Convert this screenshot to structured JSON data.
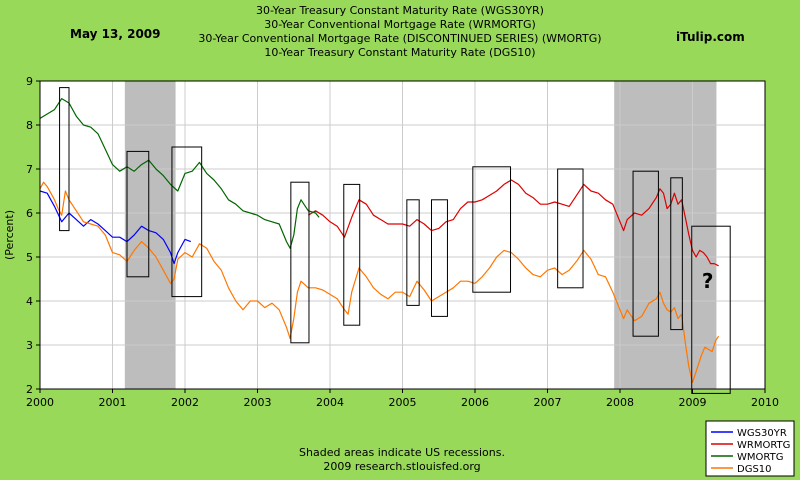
{
  "header": {
    "date": "May 13, 2009",
    "source_brand": "iTulip.com"
  },
  "chart_data": {
    "type": "line",
    "title_lines": [
      "30-Year Treasury Constant Maturity Rate (WGS30YR)",
      "30-Year Conventional Mortgage Rate (WRMORTG)",
      "30-Year Conventional Mortgage Rate (DISCONTINUED SERIES) (WMORTG)",
      "10-Year Treasury Constant Maturity Rate (DGS10)"
    ],
    "ylabel": "(Percent)",
    "xlabel": "",
    "xlim": [
      2000,
      2010
    ],
    "ylim": [
      2,
      9
    ],
    "x_ticks": [
      "2000",
      "2001",
      "2002",
      "2003",
      "2004",
      "2005",
      "2006",
      "2007",
      "2008",
      "2009",
      "2010"
    ],
    "y_ticks": [
      "2",
      "3",
      "4",
      "5",
      "6",
      "7",
      "8",
      "9"
    ],
    "recessions": [
      [
        2001.17,
        2001.87
      ],
      [
        2007.92,
        2009.33
      ]
    ],
    "annotation_boxes": [
      {
        "x0": 2000.27,
        "x1": 2000.4,
        "y0": 5.6,
        "y1": 8.85
      },
      {
        "x0": 2001.2,
        "x1": 2001.5,
        "y0": 4.55,
        "y1": 7.4
      },
      {
        "x0": 2001.82,
        "x1": 2002.23,
        "y0": 4.1,
        "y1": 7.5
      },
      {
        "x0": 2003.46,
        "x1": 2003.71,
        "y0": 3.05,
        "y1": 6.7
      },
      {
        "x0": 2004.19,
        "x1": 2004.41,
        "y0": 3.45,
        "y1": 6.65
      },
      {
        "x0": 2005.06,
        "x1": 2005.23,
        "y0": 3.9,
        "y1": 6.3
      },
      {
        "x0": 2005.4,
        "x1": 2005.62,
        "y0": 3.65,
        "y1": 6.3
      },
      {
        "x0": 2005.97,
        "x1": 2006.49,
        "y0": 4.2,
        "y1": 7.05
      },
      {
        "x0": 2007.14,
        "x1": 2007.49,
        "y0": 4.3,
        "y1": 7.0
      },
      {
        "x0": 2008.18,
        "x1": 2008.53,
        "y0": 3.2,
        "y1": 6.95
      },
      {
        "x0": 2008.7,
        "x1": 2008.86,
        "y0": 3.35,
        "y1": 6.8
      },
      {
        "x0": 2008.99,
        "x1": 2009.52,
        "y0": 1.9,
        "y1": 5.7
      }
    ],
    "question_mark": {
      "text": "?",
      "x": 2009.13,
      "y": 4.3
    },
    "series": [
      {
        "name": "WGS30YR",
        "color": "#0000ff",
        "points": [
          [
            2000.0,
            6.5
          ],
          [
            2000.1,
            6.45
          ],
          [
            2000.2,
            6.15
          ],
          [
            2000.3,
            5.8
          ],
          [
            2000.4,
            6.0
          ],
          [
            2000.5,
            5.85
          ],
          [
            2000.6,
            5.7
          ],
          [
            2000.7,
            5.85
          ],
          [
            2000.8,
            5.75
          ],
          [
            2000.9,
            5.6
          ],
          [
            2001.0,
            5.45
          ],
          [
            2001.1,
            5.45
          ],
          [
            2001.2,
            5.35
          ],
          [
            2001.3,
            5.5
          ],
          [
            2001.4,
            5.7
          ],
          [
            2001.5,
            5.6
          ],
          [
            2001.6,
            5.55
          ],
          [
            2001.7,
            5.4
          ],
          [
            2001.8,
            5.1
          ],
          [
            2001.85,
            4.85
          ],
          [
            2001.9,
            5.1
          ],
          [
            2002.0,
            5.4
          ],
          [
            2002.08,
            5.35
          ]
        ]
      },
      {
        "name": "WRMORTG",
        "color": "#dd0000",
        "points": [
          [
            2003.7,
            5.95
          ],
          [
            2003.8,
            6.05
          ],
          [
            2003.9,
            5.95
          ],
          [
            2004.0,
            5.8
          ],
          [
            2004.1,
            5.7
          ],
          [
            2004.2,
            5.45
          ],
          [
            2004.3,
            5.9
          ],
          [
            2004.4,
            6.3
          ],
          [
            2004.5,
            6.2
          ],
          [
            2004.6,
            5.95
          ],
          [
            2004.7,
            5.85
          ],
          [
            2004.8,
            5.75
          ],
          [
            2004.9,
            5.75
          ],
          [
            2005.0,
            5.75
          ],
          [
            2005.1,
            5.7
          ],
          [
            2005.2,
            5.85
          ],
          [
            2005.3,
            5.75
          ],
          [
            2005.4,
            5.6
          ],
          [
            2005.5,
            5.65
          ],
          [
            2005.6,
            5.8
          ],
          [
            2005.7,
            5.85
          ],
          [
            2005.8,
            6.1
          ],
          [
            2005.9,
            6.25
          ],
          [
            2006.0,
            6.25
          ],
          [
            2006.1,
            6.3
          ],
          [
            2006.2,
            6.4
          ],
          [
            2006.3,
            6.5
          ],
          [
            2006.4,
            6.65
          ],
          [
            2006.5,
            6.75
          ],
          [
            2006.6,
            6.65
          ],
          [
            2006.7,
            6.45
          ],
          [
            2006.8,
            6.35
          ],
          [
            2006.9,
            6.2
          ],
          [
            2007.0,
            6.2
          ],
          [
            2007.1,
            6.25
          ],
          [
            2007.2,
            6.2
          ],
          [
            2007.3,
            6.15
          ],
          [
            2007.4,
            6.4
          ],
          [
            2007.5,
            6.65
          ],
          [
            2007.6,
            6.5
          ],
          [
            2007.7,
            6.45
          ],
          [
            2007.8,
            6.3
          ],
          [
            2007.9,
            6.2
          ],
          [
            2008.0,
            5.8
          ],
          [
            2008.05,
            5.6
          ],
          [
            2008.1,
            5.85
          ],
          [
            2008.2,
            6.0
          ],
          [
            2008.3,
            5.95
          ],
          [
            2008.4,
            6.1
          ],
          [
            2008.5,
            6.35
          ],
          [
            2008.55,
            6.55
          ],
          [
            2008.6,
            6.45
          ],
          [
            2008.65,
            6.1
          ],
          [
            2008.7,
            6.2
          ],
          [
            2008.75,
            6.45
          ],
          [
            2008.8,
            6.2
          ],
          [
            2008.85,
            6.3
          ],
          [
            2008.9,
            5.9
          ],
          [
            2008.95,
            5.5
          ],
          [
            2009.0,
            5.15
          ],
          [
            2009.05,
            5.0
          ],
          [
            2009.1,
            5.15
          ],
          [
            2009.15,
            5.1
          ],
          [
            2009.2,
            5.0
          ],
          [
            2009.25,
            4.85
          ],
          [
            2009.3,
            4.85
          ],
          [
            2009.36,
            4.8
          ]
        ]
      },
      {
        "name": "WMORTG",
        "color": "#006600",
        "points": [
          [
            2000.0,
            8.15
          ],
          [
            2000.1,
            8.25
          ],
          [
            2000.2,
            8.35
          ],
          [
            2000.3,
            8.6
          ],
          [
            2000.4,
            8.5
          ],
          [
            2000.5,
            8.2
          ],
          [
            2000.6,
            8.0
          ],
          [
            2000.7,
            7.95
          ],
          [
            2000.8,
            7.8
          ],
          [
            2000.9,
            7.45
          ],
          [
            2001.0,
            7.1
          ],
          [
            2001.1,
            6.95
          ],
          [
            2001.2,
            7.05
          ],
          [
            2001.3,
            6.95
          ],
          [
            2001.4,
            7.1
          ],
          [
            2001.5,
            7.2
          ],
          [
            2001.6,
            7.0
          ],
          [
            2001.7,
            6.85
          ],
          [
            2001.8,
            6.65
          ],
          [
            2001.9,
            6.5
          ],
          [
            2002.0,
            6.9
          ],
          [
            2002.1,
            6.95
          ],
          [
            2002.2,
            7.15
          ],
          [
            2002.3,
            6.9
          ],
          [
            2002.4,
            6.75
          ],
          [
            2002.5,
            6.55
          ],
          [
            2002.6,
            6.3
          ],
          [
            2002.7,
            6.2
          ],
          [
            2002.8,
            6.05
          ],
          [
            2002.9,
            6.0
          ],
          [
            2003.0,
            5.95
          ],
          [
            2003.1,
            5.85
          ],
          [
            2003.2,
            5.8
          ],
          [
            2003.3,
            5.75
          ],
          [
            2003.4,
            5.35
          ],
          [
            2003.45,
            5.2
          ],
          [
            2003.5,
            5.5
          ],
          [
            2003.55,
            6.1
          ],
          [
            2003.6,
            6.3
          ],
          [
            2003.7,
            6.05
          ],
          [
            2003.8,
            6.0
          ],
          [
            2003.85,
            5.9
          ]
        ]
      },
      {
        "name": "DGS10",
        "color": "#ff7700",
        "points": [
          [
            2000.0,
            6.55
          ],
          [
            2000.05,
            6.7
          ],
          [
            2000.1,
            6.6
          ],
          [
            2000.15,
            6.45
          ],
          [
            2000.2,
            6.3
          ],
          [
            2000.25,
            6.1
          ],
          [
            2000.3,
            5.95
          ],
          [
            2000.35,
            6.5
          ],
          [
            2000.4,
            6.3
          ],
          [
            2000.5,
            6.05
          ],
          [
            2000.6,
            5.8
          ],
          [
            2000.7,
            5.75
          ],
          [
            2000.8,
            5.7
          ],
          [
            2000.9,
            5.5
          ],
          [
            2001.0,
            5.1
          ],
          [
            2001.1,
            5.05
          ],
          [
            2001.2,
            4.9
          ],
          [
            2001.3,
            5.15
          ],
          [
            2001.4,
            5.35
          ],
          [
            2001.5,
            5.2
          ],
          [
            2001.6,
            5.0
          ],
          [
            2001.7,
            4.7
          ],
          [
            2001.8,
            4.4
          ],
          [
            2001.85,
            4.5
          ],
          [
            2001.9,
            4.95
          ],
          [
            2002.0,
            5.1
          ],
          [
            2002.1,
            5.0
          ],
          [
            2002.2,
            5.3
          ],
          [
            2002.3,
            5.2
          ],
          [
            2002.4,
            4.9
          ],
          [
            2002.5,
            4.7
          ],
          [
            2002.6,
            4.3
          ],
          [
            2002.7,
            4.0
          ],
          [
            2002.8,
            3.8
          ],
          [
            2002.9,
            4.0
          ],
          [
            2003.0,
            4.0
          ],
          [
            2003.1,
            3.85
          ],
          [
            2003.2,
            3.95
          ],
          [
            2003.3,
            3.8
          ],
          [
            2003.4,
            3.4
          ],
          [
            2003.45,
            3.15
          ],
          [
            2003.5,
            3.6
          ],
          [
            2003.55,
            4.2
          ],
          [
            2003.6,
            4.45
          ],
          [
            2003.7,
            4.3
          ],
          [
            2003.8,
            4.3
          ],
          [
            2003.9,
            4.25
          ],
          [
            2004.0,
            4.15
          ],
          [
            2004.1,
            4.05
          ],
          [
            2004.2,
            3.8
          ],
          [
            2004.25,
            3.7
          ],
          [
            2004.3,
            4.2
          ],
          [
            2004.4,
            4.75
          ],
          [
            2004.5,
            4.55
          ],
          [
            2004.6,
            4.3
          ],
          [
            2004.7,
            4.15
          ],
          [
            2004.8,
            4.05
          ],
          [
            2004.9,
            4.2
          ],
          [
            2005.0,
            4.2
          ],
          [
            2005.1,
            4.1
          ],
          [
            2005.2,
            4.45
          ],
          [
            2005.3,
            4.25
          ],
          [
            2005.4,
            4.0
          ],
          [
            2005.5,
            4.1
          ],
          [
            2005.6,
            4.2
          ],
          [
            2005.7,
            4.3
          ],
          [
            2005.8,
            4.45
          ],
          [
            2005.9,
            4.45
          ],
          [
            2006.0,
            4.4
          ],
          [
            2006.1,
            4.55
          ],
          [
            2006.2,
            4.75
          ],
          [
            2006.3,
            5.0
          ],
          [
            2006.4,
            5.15
          ],
          [
            2006.5,
            5.1
          ],
          [
            2006.6,
            4.95
          ],
          [
            2006.7,
            4.75
          ],
          [
            2006.8,
            4.6
          ],
          [
            2006.9,
            4.55
          ],
          [
            2007.0,
            4.7
          ],
          [
            2007.1,
            4.75
          ],
          [
            2007.2,
            4.6
          ],
          [
            2007.3,
            4.7
          ],
          [
            2007.4,
            4.9
          ],
          [
            2007.5,
            5.15
          ],
          [
            2007.6,
            4.95
          ],
          [
            2007.7,
            4.6
          ],
          [
            2007.8,
            4.55
          ],
          [
            2007.9,
            4.2
          ],
          [
            2008.0,
            3.8
          ],
          [
            2008.05,
            3.6
          ],
          [
            2008.1,
            3.8
          ],
          [
            2008.2,
            3.55
          ],
          [
            2008.3,
            3.65
          ],
          [
            2008.4,
            3.95
          ],
          [
            2008.5,
            4.05
          ],
          [
            2008.55,
            4.2
          ],
          [
            2008.6,
            3.95
          ],
          [
            2008.65,
            3.8
          ],
          [
            2008.7,
            3.75
          ],
          [
            2008.75,
            3.85
          ],
          [
            2008.8,
            3.6
          ],
          [
            2008.85,
            3.7
          ],
          [
            2008.9,
            3.05
          ],
          [
            2008.95,
            2.5
          ],
          [
            2009.0,
            2.15
          ],
          [
            2009.03,
            2.3
          ],
          [
            2009.08,
            2.55
          ],
          [
            2009.12,
            2.75
          ],
          [
            2009.17,
            2.95
          ],
          [
            2009.22,
            2.9
          ],
          [
            2009.27,
            2.85
          ],
          [
            2009.32,
            3.1
          ],
          [
            2009.36,
            3.2
          ]
        ]
      }
    ],
    "legend": [
      {
        "label": "WGS30YR",
        "color": "#0000ff"
      },
      {
        "label": "WRMORTG",
        "color": "#dd0000"
      },
      {
        "label": "WMORTG",
        "color": "#006600"
      },
      {
        "label": "DGS10",
        "color": "#ff7700"
      }
    ],
    "legend_placement": "bottom-right",
    "footer_lines": [
      "Shaded areas indicate US recessions.",
      "2009 research.stlouisfed.org"
    ]
  }
}
